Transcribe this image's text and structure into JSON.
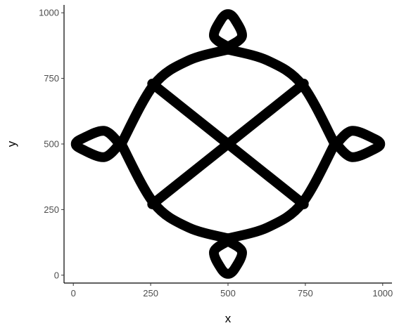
{
  "chart_data": {
    "type": "line",
    "title": "",
    "xlabel": "x",
    "ylabel": "y",
    "xlim": [
      -30,
      1030
    ],
    "ylim": [
      -30,
      1030
    ],
    "x_ticks": [
      0,
      250,
      500,
      750,
      1000
    ],
    "x_tick_labels": [
      "0",
      "250",
      "500",
      "750",
      "1000"
    ],
    "y_ticks": [
      0,
      250,
      500,
      750,
      1000
    ],
    "y_tick_labels": [
      "0",
      "250",
      "500",
      "750",
      "1000"
    ],
    "grid": false,
    "line_color": "#000000",
    "series": [
      {
        "x": [
          500,
          372,
          260,
          155
        ],
        "y": [
          860,
          818,
          725,
          500
        ]
      },
      {
        "x": [
          500,
          628,
          740,
          845
        ],
        "y": [
          860,
          818,
          725,
          500
        ]
      },
      {
        "x": [
          500,
          372,
          260,
          155
        ],
        "y": [
          140,
          182,
          275,
          500
        ]
      },
      {
        "x": [
          500,
          628,
          740,
          845
        ],
        "y": [
          140,
          182,
          275,
          500
        ]
      },
      {
        "x": [
          255,
          500,
          745
        ],
        "y": [
          730,
          500,
          270
        ]
      },
      {
        "x": [
          745,
          500,
          255
        ],
        "y": [
          730,
          500,
          270
        ]
      },
      {
        "x": [
          500,
          455,
          478,
          500,
          522,
          545,
          500
        ],
        "y": [
          870,
          910,
          975,
          995,
          975,
          910,
          870
        ]
      },
      {
        "x": [
          500,
          455,
          478,
          500,
          522,
          545,
          500
        ],
        "y": [
          130,
          90,
          25,
          5,
          25,
          90,
          130
        ]
      },
      {
        "x": [
          150,
          100,
          28,
          8,
          28,
          100,
          150
        ],
        "y": [
          500,
          550,
          520,
          500,
          480,
          450,
          500
        ]
      },
      {
        "x": [
          850,
          900,
          972,
          992,
          972,
          900,
          850
        ],
        "y": [
          500,
          550,
          520,
          500,
          480,
          450,
          500
        ]
      }
    ]
  }
}
